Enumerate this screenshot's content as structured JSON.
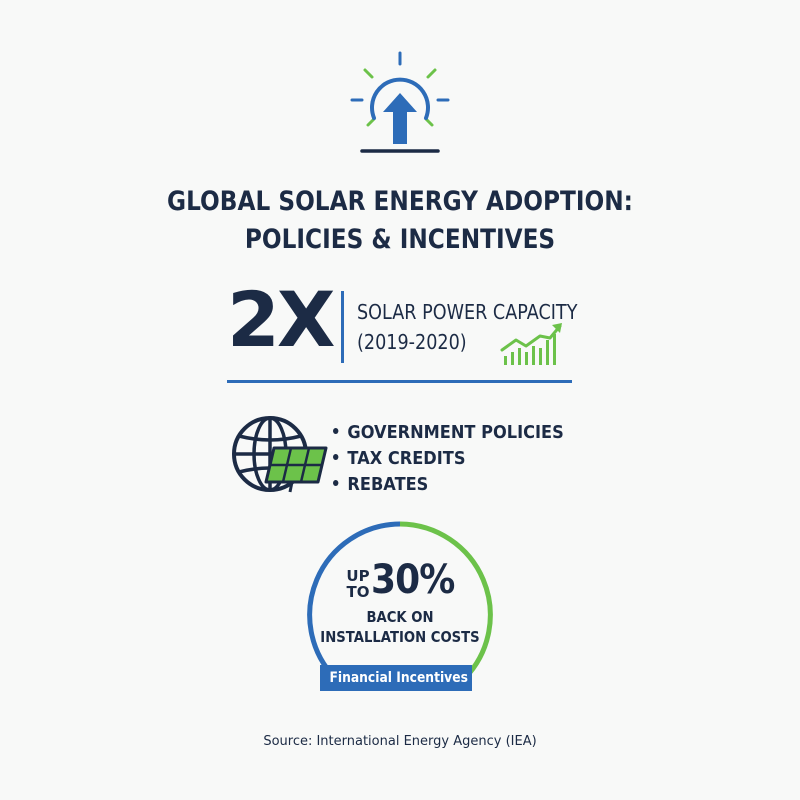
{
  "title": {
    "line1": "GLOBAL SOLAR ENERGY ADOPTION:",
    "line2": "POLICIES & INCENTIVES"
  },
  "stat": {
    "value": "2X",
    "label_line1": "SOLAR POWER CAPACITY",
    "label_line2": "(2019-2020)"
  },
  "drivers": {
    "items": [
      "GOVERNMENT POLICIES",
      "TAX CREDITS",
      "REBATES"
    ]
  },
  "incentive": {
    "prefix_line1": "UP",
    "prefix_line2": "TO",
    "value": "30%",
    "desc_line1": "BACK ON",
    "desc_line2": "INSTALLATION COSTS",
    "badge": "Financial Incentives"
  },
  "source": "Source: International Energy Agency (IEA)",
  "icons": {
    "hero": "sunrise-arrow-icon",
    "growth": "growth-chart-icon",
    "globe": "globe-solar-panel-icon"
  },
  "colors": {
    "navy": "#1c2b45",
    "blue": "#2d6cb8",
    "green": "#6cc24a",
    "background": "#f8f9f8"
  }
}
